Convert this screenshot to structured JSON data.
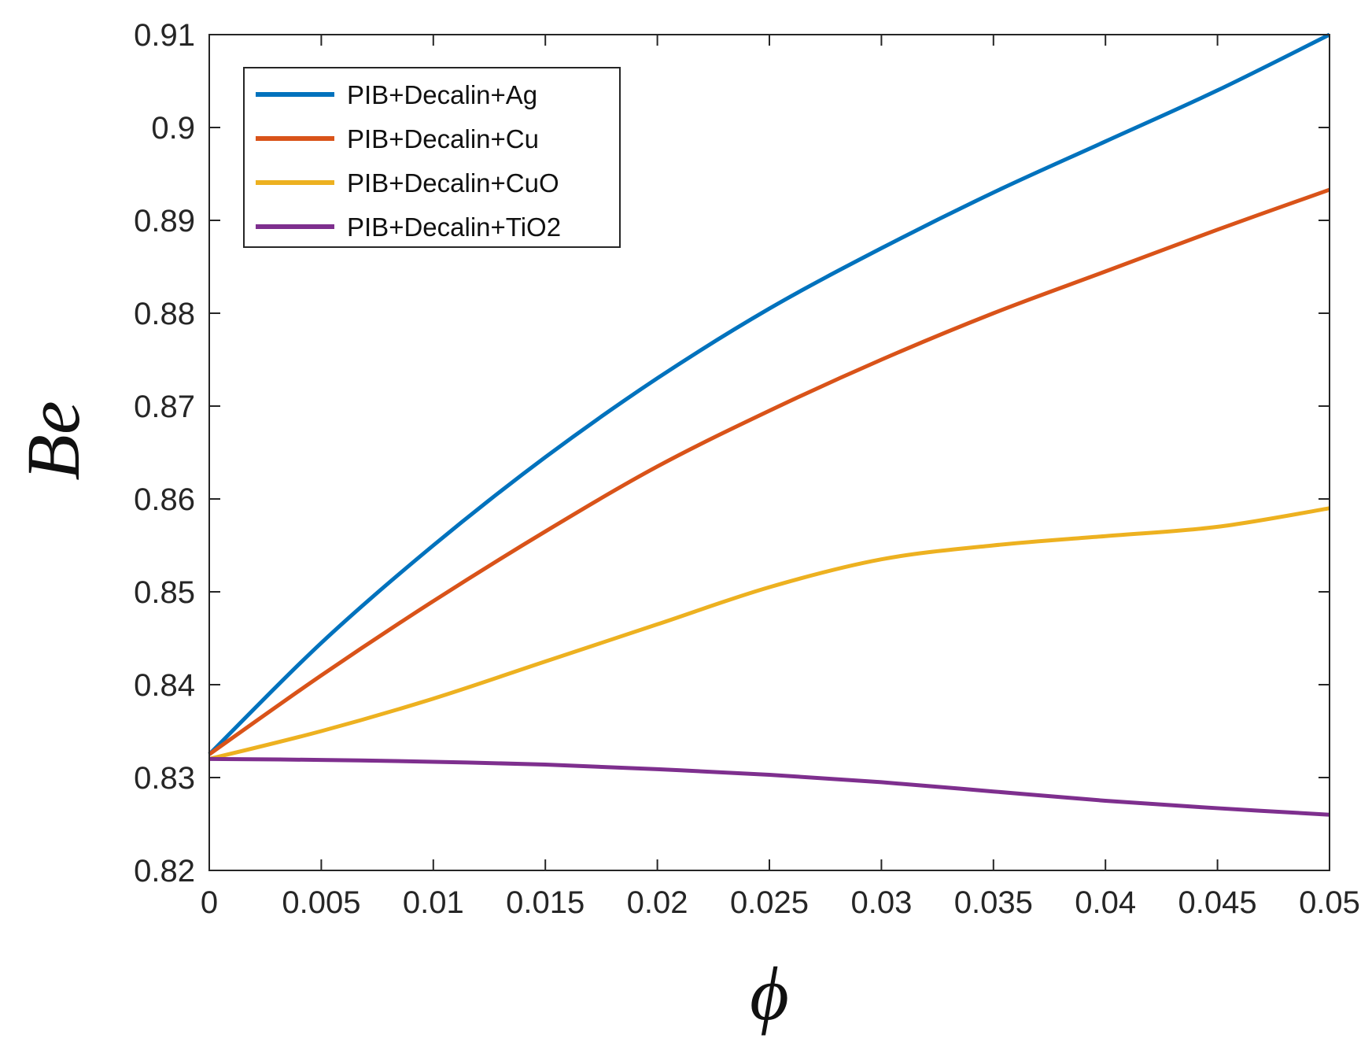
{
  "chart_data": {
    "type": "line",
    "title": "",
    "xlabel": "ϕ",
    "ylabel": "Be",
    "xlim": [
      0,
      0.05
    ],
    "ylim": [
      0.82,
      0.91
    ],
    "grid": false,
    "legend_position": "top-left",
    "x_ticks": [
      "0",
      "0.005",
      "0.01",
      "0.015",
      "0.02",
      "0.025",
      "0.03",
      "0.035",
      "0.04",
      "0.045",
      "0.05"
    ],
    "y_ticks": [
      "0.82",
      "0.83",
      "0.84",
      "0.85",
      "0.86",
      "0.87",
      "0.88",
      "0.89",
      "0.9",
      "0.91"
    ],
    "x": [
      0,
      0.005,
      0.01,
      0.015,
      0.02,
      0.025,
      0.03,
      0.035,
      0.04,
      0.045,
      0.05
    ],
    "series": [
      {
        "name": "PIB+Decalin+Ag",
        "color": "#0072BD",
        "values": [
          0.8325,
          0.8445,
          0.855,
          0.8645,
          0.873,
          0.8805,
          0.887,
          0.893,
          0.8985,
          0.904,
          0.91
        ]
      },
      {
        "name": "PIB+Decalin+Cu",
        "color": "#D95319",
        "values": [
          0.8325,
          0.841,
          0.849,
          0.8565,
          0.8635,
          0.8695,
          0.875,
          0.88,
          0.8845,
          0.889,
          0.8933
        ]
      },
      {
        "name": "PIB+Decalin+CuO",
        "color": "#EDB120",
        "values": [
          0.832,
          0.835,
          0.8385,
          0.8425,
          0.8465,
          0.8505,
          0.8535,
          0.855,
          0.856,
          0.857,
          0.859
        ]
      },
      {
        "name": "PIB+Decalin+TiO2",
        "color": "#7E2F8E",
        "values": [
          0.832,
          0.8319,
          0.8317,
          0.8314,
          0.8309,
          0.8303,
          0.8295,
          0.8285,
          0.8275,
          0.8267,
          0.826
        ]
      }
    ]
  }
}
